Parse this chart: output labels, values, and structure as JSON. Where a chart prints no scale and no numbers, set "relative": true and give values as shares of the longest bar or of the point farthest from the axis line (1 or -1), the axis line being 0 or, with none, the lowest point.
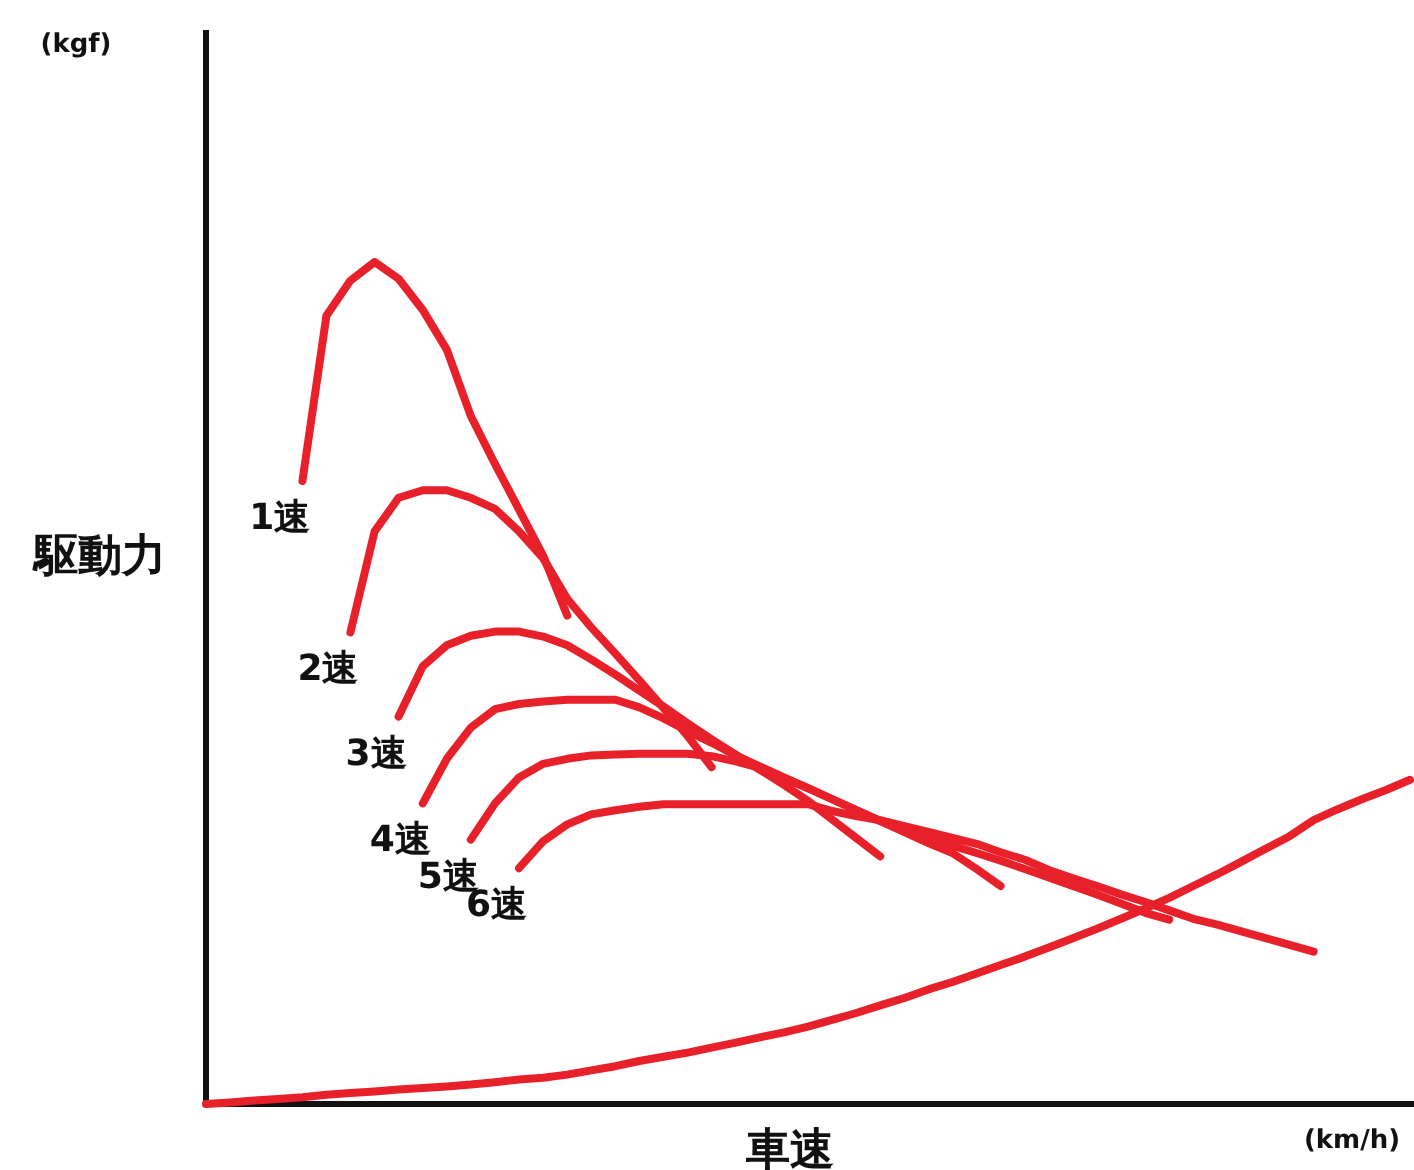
{
  "chart_data": {
    "type": "line",
    "relative": true,
    "ylabel": "駆動力",
    "xlabel": "車速",
    "annotations": [
      "(kgf)",
      "(km/h)"
    ],
    "categories": [
      null,
      null,
      null,
      null,
      null,
      null,
      null,
      null,
      null,
      null,
      null,
      null,
      null,
      null,
      null,
      null,
      null,
      null,
      null,
      null,
      null,
      null,
      null,
      null,
      null,
      null,
      null,
      null,
      null,
      null,
      null,
      null,
      null,
      null,
      null,
      null,
      null,
      null,
      null,
      null,
      null,
      null,
      null,
      null,
      null,
      null,
      null,
      null,
      null,
      null,
      null
    ],
    "series": [
      {
        "name": "1速",
        "color": "#e8202a",
        "values": [
          null,
          null,
          null,
          null,
          0.74,
          0.936,
          0.978,
          1.0,
          0.98,
          0.943,
          0.896,
          0.817,
          0.76,
          0.706,
          0.651,
          0.58,
          null,
          null,
          null,
          null,
          null,
          null,
          null,
          null,
          null,
          null,
          null,
          null,
          null,
          null,
          null,
          null,
          null,
          null,
          null,
          null,
          null,
          null,
          null,
          null,
          null,
          null,
          null,
          null,
          null,
          null,
          null,
          null,
          null,
          null,
          null
        ]
      },
      {
        "name": "2速",
        "color": "#e8202a",
        "values": [
          null,
          null,
          null,
          null,
          null,
          null,
          0.56,
          0.68,
          0.72,
          0.729,
          0.729,
          0.72,
          0.707,
          0.68,
          0.648,
          0.6,
          0.566,
          0.535,
          0.503,
          0.47,
          0.437,
          0.4,
          null,
          null,
          null,
          null,
          null,
          null,
          null,
          null,
          null,
          null,
          null,
          null,
          null,
          null,
          null,
          null,
          null,
          null,
          null,
          null,
          null,
          null,
          null,
          null,
          null,
          null,
          null,
          null,
          null
        ]
      },
      {
        "name": "3速",
        "color": "#e8202a",
        "values": [
          null,
          null,
          null,
          null,
          null,
          null,
          null,
          null,
          0.46,
          0.52,
          0.545,
          0.556,
          0.561,
          0.561,
          0.555,
          0.545,
          0.528,
          0.51,
          0.491,
          0.472,
          0.452,
          0.433,
          0.415,
          0.397,
          0.379,
          0.36,
          0.338,
          0.316,
          0.294,
          null,
          null,
          null,
          null,
          null,
          null,
          null,
          null,
          null,
          null,
          null,
          null,
          null,
          null,
          null,
          null,
          null,
          null,
          null,
          null,
          null,
          null
        ]
      },
      {
        "name": "4速",
        "color": "#e8202a",
        "values": [
          null,
          null,
          null,
          null,
          null,
          null,
          null,
          null,
          null,
          0.357,
          0.41,
          0.447,
          0.469,
          0.475,
          0.478,
          0.48,
          0.48,
          0.48,
          0.471,
          0.458,
          0.443,
          0.429,
          0.414,
          0.401,
          0.388,
          0.375,
          0.362,
          0.349,
          0.336,
          0.323,
          0.31,
          0.298,
          0.279,
          0.259,
          null,
          null,
          null,
          null,
          null,
          null,
          null,
          null,
          null,
          null,
          null,
          null,
          null,
          null,
          null,
          null,
          null
        ]
      },
      {
        "name": "5速",
        "color": "#e8202a",
        "values": [
          null,
          null,
          null,
          null,
          null,
          null,
          null,
          null,
          null,
          null,
          null,
          0.314,
          0.357,
          0.388,
          0.404,
          0.41,
          0.414,
          0.415,
          0.416,
          0.416,
          0.416,
          0.413,
          0.407,
          0.399,
          0.387,
          0.375,
          0.362,
          0.349,
          0.336,
          0.326,
          0.317,
          0.307,
          0.298,
          0.289,
          0.279,
          0.269,
          0.259,
          0.249,
          0.238,
          0.227,
          0.219,
          null,
          null,
          null,
          null,
          null,
          null,
          null,
          null,
          null,
          null
        ]
      },
      {
        "name": "6速",
        "color": "#e8202a",
        "values": [
          null,
          null,
          null,
          null,
          null,
          null,
          null,
          null,
          null,
          null,
          null,
          null,
          null,
          0.28,
          0.312,
          0.332,
          0.344,
          0.349,
          0.353,
          0.356,
          0.356,
          0.356,
          0.356,
          0.356,
          0.356,
          0.356,
          0.348,
          0.342,
          0.337,
          0.33,
          0.323,
          0.316,
          0.309,
          0.299,
          0.29,
          0.278,
          0.268,
          0.259,
          0.249,
          0.24,
          0.23,
          0.22,
          0.213,
          0.205,
          0.197,
          0.189,
          0.181,
          null,
          null,
          null,
          null
        ]
      },
      {
        "color": "#e8202a",
        "values": [
          0,
          0.002,
          0.004,
          0.006,
          0.008,
          0.011,
          0.013,
          0.015,
          0.017,
          0.019,
          0.021,
          0.023,
          0.026,
          0.029,
          0.031,
          0.035,
          0.04,
          0.045,
          0.051,
          0.056,
          0.061,
          0.067,
          0.073,
          0.079,
          0.085,
          0.092,
          0.1,
          0.108,
          0.117,
          0.126,
          0.136,
          0.145,
          0.155,
          0.165,
          0.175,
          0.186,
          0.197,
          0.208,
          0.22,
          0.232,
          0.245,
          0.259,
          0.273,
          0.288,
          0.303,
          0.318,
          0.337,
          0.35,
          0.362,
          0.373,
          0.385
        ]
      }
    ]
  }
}
